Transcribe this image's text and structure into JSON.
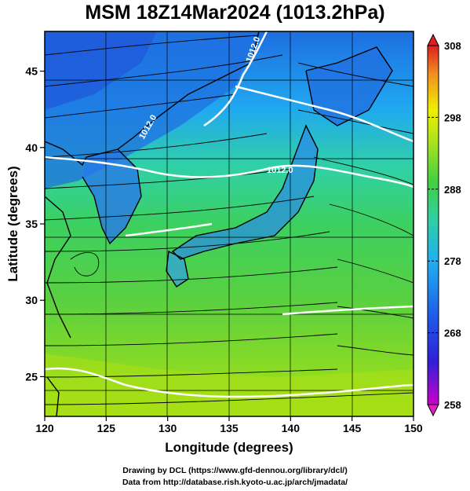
{
  "title": "MSM 18Z14Mar2024 (1013.2hPa)",
  "x_axis": {
    "label": "Longitude (degrees)",
    "ticks": [
      "120",
      "125",
      "130",
      "135",
      "140",
      "145",
      "150"
    ],
    "range": [
      120,
      150
    ]
  },
  "y_axis": {
    "label": "Latitude  (degrees)",
    "ticks": [
      "25",
      "30",
      "35",
      "40",
      "45"
    ],
    "range": [
      22.4,
      47.6
    ]
  },
  "colorbar": {
    "ticks": [
      "258",
      "268",
      "278",
      "288",
      "298",
      "308"
    ],
    "range": [
      258,
      308
    ],
    "colors": [
      "#cc00cc",
      "#2020e0",
      "#20a0f0",
      "#30d080",
      "#90e020",
      "#f0f000",
      "#f09020",
      "#e02020"
    ]
  },
  "contour_labels": [
    "1012.0",
    "1012.0",
    "1012.0"
  ],
  "footer": {
    "line1": "Drawing by DCL (https://www.gfd-dennou.org/library/dcl/)",
    "line2": "Data from http://database.rish.kyoto-u.ac.jp/arch/jmadata/"
  }
}
